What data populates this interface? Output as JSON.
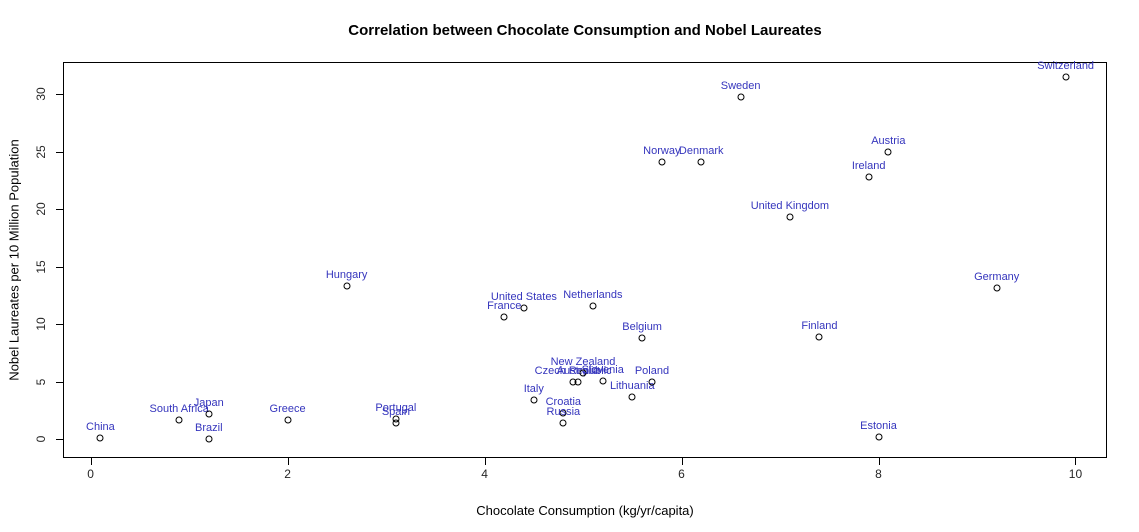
{
  "label_color": "#3535BD",
  "chart_data": {
    "type": "scatter",
    "title": "Correlation between Chocolate Consumption and Nobel Laureates",
    "xlabel": "Chocolate Consumption (kg/yr/capita)",
    "ylabel": "Nobel Laureates per 10 Million Population",
    "xlim": [
      -0.28,
      10.32
    ],
    "ylim": [
      -1.63,
      32.82
    ],
    "x_ticks": [
      0,
      2,
      4,
      6,
      8,
      10
    ],
    "y_ticks": [
      0,
      5,
      10,
      15,
      20,
      25,
      30
    ],
    "grid": false,
    "legend": "none",
    "marker": "open-circle",
    "points": [
      {
        "label": "China",
        "x": 0.1,
        "y": 0.1
      },
      {
        "label": "South Africa",
        "x": 0.9,
        "y": 1.7
      },
      {
        "label": "Japan",
        "x": 1.2,
        "y": 2.2
      },
      {
        "label": "Brazil",
        "x": 1.2,
        "y": 0.0
      },
      {
        "label": "Greece",
        "x": 2.0,
        "y": 1.7
      },
      {
        "label": "Hungary",
        "x": 2.6,
        "y": 13.3
      },
      {
        "label": "Portugal",
        "x": 3.1,
        "y": 1.8
      },
      {
        "label": "Spain",
        "x": 3.1,
        "y": 1.4
      },
      {
        "label": "France",
        "x": 4.2,
        "y": 10.6
      },
      {
        "label": "United States",
        "x": 4.4,
        "y": 11.4
      },
      {
        "label": "Italy",
        "x": 4.5,
        "y": 3.4
      },
      {
        "label": "Croatia",
        "x": 4.8,
        "y": 2.3
      },
      {
        "label": "Russia",
        "x": 4.8,
        "y": 1.4
      },
      {
        "label": "Czech Republic",
        "x": 4.9,
        "y": 5.0
      },
      {
        "label": "Australia",
        "x": 4.95,
        "y": 5.0
      },
      {
        "label": "New Zealand",
        "x": 5.0,
        "y": 5.8
      },
      {
        "label": "Netherlands",
        "x": 5.1,
        "y": 11.6
      },
      {
        "label": "Slovenia",
        "x": 5.2,
        "y": 5.1
      },
      {
        "label": "Lithuania",
        "x": 5.5,
        "y": 3.7
      },
      {
        "label": "Belgium",
        "x": 5.6,
        "y": 8.8
      },
      {
        "label": "Poland",
        "x": 5.7,
        "y": 5.0
      },
      {
        "label": "Norway",
        "x": 5.8,
        "y": 24.1
      },
      {
        "label": "Denmark",
        "x": 6.2,
        "y": 24.1
      },
      {
        "label": "Sweden",
        "x": 6.6,
        "y": 29.8
      },
      {
        "label": "United Kingdom",
        "x": 7.1,
        "y": 19.3
      },
      {
        "label": "Finland",
        "x": 7.4,
        "y": 8.9
      },
      {
        "label": "Ireland",
        "x": 7.9,
        "y": 22.8
      },
      {
        "label": "Estonia",
        "x": 8.0,
        "y": 0.2
      },
      {
        "label": "Austria",
        "x": 8.1,
        "y": 25.0
      },
      {
        "label": "Germany",
        "x": 9.2,
        "y": 13.2
      },
      {
        "label": "Switzerland",
        "x": 9.9,
        "y": 31.5
      }
    ]
  }
}
